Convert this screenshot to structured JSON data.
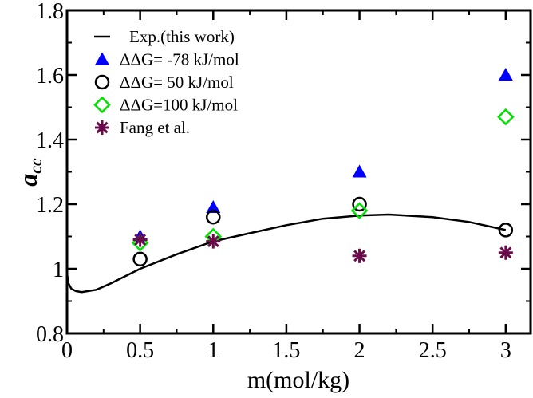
{
  "chart_data": {
    "type": "scatter",
    "title": "",
    "xlabel": "m(mol/kg)",
    "ylabel": "a_cc",
    "ylabel_main": "a",
    "ylabel_sub": "cc",
    "xlim": [
      0,
      3.17
    ],
    "ylim": [
      0.8,
      1.8
    ],
    "xticks": [
      0,
      0.5,
      1,
      1.5,
      2,
      2.5,
      3
    ],
    "xtick_labels": [
      "0",
      "0.5",
      "1",
      "1.5",
      "2",
      "2.5",
      "3"
    ],
    "yticks": [
      0.8,
      1,
      1.2,
      1.4,
      1.6,
      1.8
    ],
    "ytick_labels": [
      "0.8",
      "1",
      "1.2",
      "1.4",
      "1.6",
      "1.8"
    ],
    "grid": false,
    "legend_placement": "top-left",
    "curve": {
      "name": "Exp.(this work)",
      "color": "#000000",
      "x": [
        0,
        0.01,
        0.03,
        0.06,
        0.1,
        0.2,
        0.3,
        0.5,
        0.75,
        1,
        1.25,
        1.5,
        1.75,
        2,
        2.2,
        2.5,
        2.75,
        3
      ],
      "y": [
        0.985,
        0.955,
        0.938,
        0.931,
        0.928,
        0.935,
        0.955,
        1.0,
        1.045,
        1.085,
        1.11,
        1.135,
        1.155,
        1.165,
        1.168,
        1.16,
        1.145,
        1.12
      ]
    },
    "series": [
      {
        "name": "ΔΔG= -78 kJ/mol",
        "marker": "triangle",
        "color": "#0000ff",
        "x": [
          0.5,
          1,
          2,
          3
        ],
        "y": [
          1.1,
          1.19,
          1.3,
          1.6
        ]
      },
      {
        "name": "ΔΔG= 50 kJ/mol",
        "marker": "circle",
        "color": "#000000",
        "x": [
          0.5,
          1,
          2,
          3
        ],
        "y": [
          1.03,
          1.16,
          1.2,
          1.12
        ]
      },
      {
        "name": "ΔΔG=100 kJ/mol",
        "marker": "diamond",
        "color": "#00e000",
        "x": [
          0.5,
          1,
          2,
          3
        ],
        "y": [
          1.08,
          1.1,
          1.18,
          1.47
        ]
      },
      {
        "name": "Fang et al.",
        "marker": "star",
        "color": "#6b0a4a",
        "x": [
          0.5,
          1,
          2,
          3
        ],
        "y": [
          1.09,
          1.085,
          1.04,
          1.05
        ]
      }
    ]
  }
}
